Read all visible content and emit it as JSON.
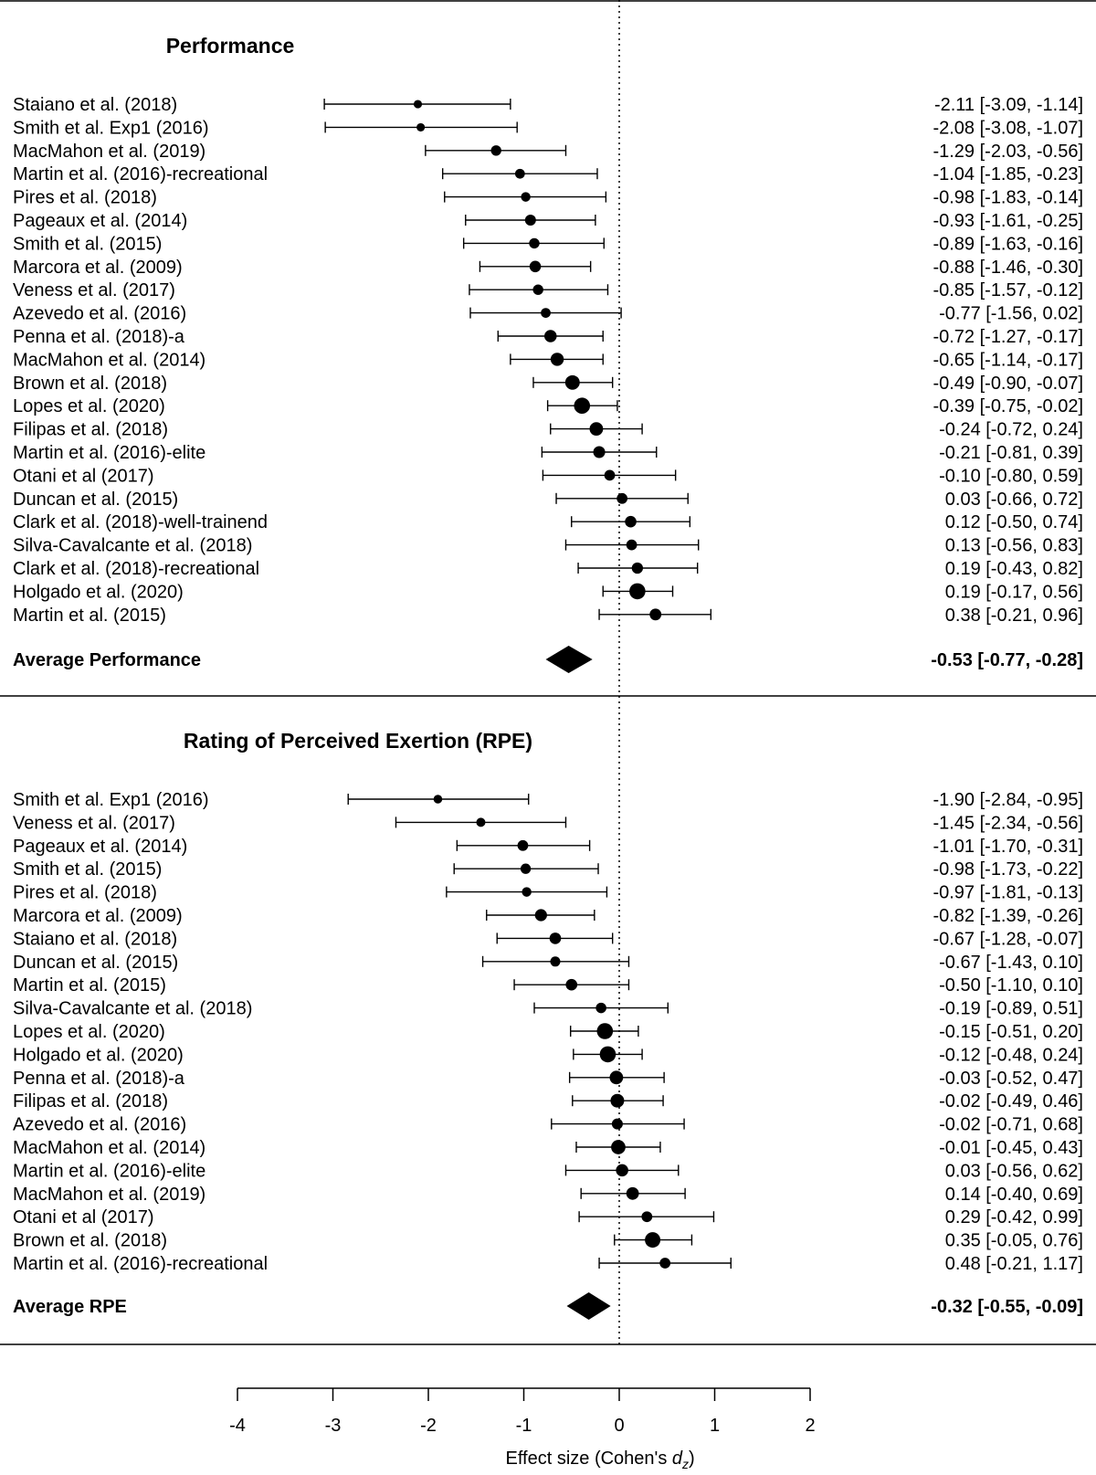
{
  "chart_data": {
    "type": "forest",
    "xlabel": "Effect size (Cohen's d",
    "xlabel_subscript": "z",
    "xlabel_close": ")",
    "xlim": [
      -4,
      2
    ],
    "xticks": [
      -4,
      -3,
      -2,
      -1,
      0,
      1,
      2
    ],
    "xtick_labels": [
      "-4",
      "-3",
      "-2",
      "-1",
      "0",
      "1",
      "2"
    ],
    "reference_line": 0,
    "panels": [
      {
        "title": "Performance",
        "studies": [
          {
            "label": "Staiano et al. (2018)",
            "est": -2.11,
            "lo": -3.09,
            "hi": -1.14,
            "ci_text": "-2.11 [-3.09, -1.14]",
            "weight": 0.1
          },
          {
            "label": "Smith et al. Exp1 (2016)",
            "est": -2.08,
            "lo": -3.08,
            "hi": -1.07,
            "ci_text": "-2.08 [-3.08, -1.07]",
            "weight": 0.1
          },
          {
            "label": "MacMahon et al. (2019)",
            "est": -1.29,
            "lo": -2.03,
            "hi": -0.56,
            "ci_text": "-1.29 [-2.03, -0.56]",
            "weight": 0.25
          },
          {
            "label": "Martin et al. (2016)-recreational",
            "est": -1.04,
            "lo": -1.85,
            "hi": -0.23,
            "ci_text": "-1.04 [-1.85, -0.23]",
            "weight": 0.2
          },
          {
            "label": "Pires et al. (2018)",
            "est": -0.98,
            "lo": -1.83,
            "hi": -0.14,
            "ci_text": "-0.98 [-1.83, -0.14]",
            "weight": 0.18
          },
          {
            "label": "Pageaux et al. (2014)",
            "est": -0.93,
            "lo": -1.61,
            "hi": -0.25,
            "ci_text": "-0.93 [-1.61, -0.25]",
            "weight": 0.3
          },
          {
            "label": "Smith et al. (2015)",
            "est": -0.89,
            "lo": -1.63,
            "hi": -0.16,
            "ci_text": "-0.89 [-1.63, -0.16]",
            "weight": 0.25
          },
          {
            "label": "Marcora et al. (2009)",
            "est": -0.88,
            "lo": -1.46,
            "hi": -0.3,
            "ci_text": "-0.88 [-1.46, -0.30]",
            "weight": 0.35
          },
          {
            "label": "Veness et al. (2017)",
            "est": -0.85,
            "lo": -1.57,
            "hi": -0.12,
            "ci_text": "-0.85 [-1.57, -0.12]",
            "weight": 0.25
          },
          {
            "label": "Azevedo et al. (2016)",
            "est": -0.77,
            "lo": -1.56,
            "hi": 0.02,
            "ci_text": "-0.77 [-1.56,  0.02]",
            "weight": 0.2
          },
          {
            "label": "Penna et al. (2018)-a",
            "est": -0.72,
            "lo": -1.27,
            "hi": -0.17,
            "ci_text": "-0.72 [-1.27, -0.17]",
            "weight": 0.45
          },
          {
            "label": "MacMahon et al. (2014)",
            "est": -0.65,
            "lo": -1.14,
            "hi": -0.17,
            "ci_text": "-0.65 [-1.14, -0.17]",
            "weight": 0.55
          },
          {
            "label": "Brown et al. (2018)",
            "est": -0.49,
            "lo": -0.9,
            "hi": -0.07,
            "ci_text": "-0.49 [-0.90, -0.07]",
            "weight": 0.75
          },
          {
            "label": "Lopes et al. (2020)",
            "est": -0.39,
            "lo": -0.75,
            "hi": -0.02,
            "ci_text": "-0.39 [-0.75, -0.02]",
            "weight": 1.0
          },
          {
            "label": "Filipas et al. (2018)",
            "est": -0.24,
            "lo": -0.72,
            "hi": 0.24,
            "ci_text": "-0.24 [-0.72,  0.24]",
            "weight": 0.6
          },
          {
            "label": "Martin et al. (2016)-elite",
            "est": -0.21,
            "lo": -0.81,
            "hi": 0.39,
            "ci_text": "-0.21 [-0.81,  0.39]",
            "weight": 0.4
          },
          {
            "label": "Otani et al (2017)",
            "est": -0.1,
            "lo": -0.8,
            "hi": 0.59,
            "ci_text": "-0.10 [-0.80,  0.59]",
            "weight": 0.28
          },
          {
            "label": "Duncan et al. (2015)",
            "est": 0.03,
            "lo": -0.66,
            "hi": 0.72,
            "ci_text": "0.03 [-0.66,  0.72]",
            "weight": 0.28
          },
          {
            "label": "Clark et al. (2018)-well-trainend",
            "est": 0.12,
            "lo": -0.5,
            "hi": 0.74,
            "ci_text": "0.12 [-0.50,  0.74]",
            "weight": 0.35
          },
          {
            "label": "Silva-Cavalcante et al. (2018)",
            "est": 0.13,
            "lo": -0.56,
            "hi": 0.83,
            "ci_text": "0.13 [-0.56,  0.83]",
            "weight": 0.28
          },
          {
            "label": "Clark et al. (2018)-recreational",
            "est": 0.19,
            "lo": -0.43,
            "hi": 0.82,
            "ci_text": "0.19 [-0.43,  0.82]",
            "weight": 0.33
          },
          {
            "label": "Holgado et al. (2020)",
            "est": 0.19,
            "lo": -0.17,
            "hi": 0.56,
            "ci_text": "0.19 [-0.17,  0.56]",
            "weight": 1.0
          },
          {
            "label": "Martin et al. (2015)",
            "est": 0.38,
            "lo": -0.21,
            "hi": 0.96,
            "ci_text": "0.38 [-0.21,  0.96]",
            "weight": 0.38
          }
        ],
        "summary": {
          "label": "Average Performance",
          "est": -0.53,
          "lo": -0.77,
          "hi": -0.28,
          "ci_text": "-0.53 [-0.77, -0.28]"
        }
      },
      {
        "title": "Rating of Perceived Exertion (RPE)",
        "studies": [
          {
            "label": "Smith et al. Exp1 (2016)",
            "est": -1.9,
            "lo": -2.84,
            "hi": -0.95,
            "ci_text": "-1.90 [-2.84, -0.95]",
            "weight": 0.12
          },
          {
            "label": "Veness et al. (2017)",
            "est": -1.45,
            "lo": -2.34,
            "hi": -0.56,
            "ci_text": "-1.45 [-2.34, -0.56]",
            "weight": 0.15
          },
          {
            "label": "Pageaux et al. (2014)",
            "est": -1.01,
            "lo": -1.7,
            "hi": -0.31,
            "ci_text": "-1.01 [-1.70, -0.31]",
            "weight": 0.28
          },
          {
            "label": "Smith et al. (2015)",
            "est": -0.98,
            "lo": -1.73,
            "hi": -0.22,
            "ci_text": "-0.98 [-1.73, -0.22]",
            "weight": 0.24
          },
          {
            "label": "Pires et al. (2018)",
            "est": -0.97,
            "lo": -1.81,
            "hi": -0.13,
            "ci_text": "-0.97 [-1.81, -0.13]",
            "weight": 0.18
          },
          {
            "label": "Marcora et al. (2009)",
            "est": -0.82,
            "lo": -1.39,
            "hi": -0.26,
            "ci_text": "-0.82 [-1.39, -0.26]",
            "weight": 0.42
          },
          {
            "label": "Staiano et al. (2018)",
            "est": -0.67,
            "lo": -1.28,
            "hi": -0.07,
            "ci_text": "-0.67 [-1.28, -0.07]",
            "weight": 0.36
          },
          {
            "label": "Duncan et al. (2015)",
            "est": -0.67,
            "lo": -1.43,
            "hi": 0.1,
            "ci_text": "-0.67 [-1.43,  0.10]",
            "weight": 0.22
          },
          {
            "label": "Martin et al. (2015)",
            "est": -0.5,
            "lo": -1.1,
            "hi": 0.1,
            "ci_text": "-0.50 [-1.10,  0.10]",
            "weight": 0.36
          },
          {
            "label": "Silva-Cavalcante et al. (2018)",
            "est": -0.19,
            "lo": -0.89,
            "hi": 0.51,
            "ci_text": "-0.19 [-0.89,  0.51]",
            "weight": 0.26
          },
          {
            "label": "Lopes et al. (2020)",
            "est": -0.15,
            "lo": -0.51,
            "hi": 0.2,
            "ci_text": "-0.15 [-0.51,  0.20]",
            "weight": 1.0
          },
          {
            "label": "Holgado et al. (2020)",
            "est": -0.12,
            "lo": -0.48,
            "hi": 0.24,
            "ci_text": "-0.12 [-0.48,  0.24]",
            "weight": 1.0
          },
          {
            "label": "Penna et al. (2018)-a",
            "est": -0.03,
            "lo": -0.52,
            "hi": 0.47,
            "ci_text": "-0.03 [-0.52,  0.47]",
            "weight": 0.6
          },
          {
            "label": "Filipas et al. (2018)",
            "est": -0.02,
            "lo": -0.49,
            "hi": 0.46,
            "ci_text": "-0.02 [-0.49,  0.46]",
            "weight": 0.62
          },
          {
            "label": "Azevedo et al. (2016)",
            "est": -0.02,
            "lo": -0.71,
            "hi": 0.68,
            "ci_text": "-0.02 [-0.71,  0.68]",
            "weight": 0.3
          },
          {
            "label": "MacMahon et al. (2014)",
            "est": -0.01,
            "lo": -0.45,
            "hi": 0.43,
            "ci_text": "-0.01 [-0.45,  0.43]",
            "weight": 0.72
          },
          {
            "label": "Martin et al. (2016)-elite",
            "est": 0.03,
            "lo": -0.56,
            "hi": 0.62,
            "ci_text": "0.03 [-0.56,  0.62]",
            "weight": 0.45
          },
          {
            "label": "MacMahon et al. (2019)",
            "est": 0.14,
            "lo": -0.4,
            "hi": 0.69,
            "ci_text": "0.14 [-0.40,  0.69]",
            "weight": 0.48
          },
          {
            "label": "Otani et al (2017)",
            "est": 0.29,
            "lo": -0.42,
            "hi": 0.99,
            "ci_text": "0.29 [-0.42,  0.99]",
            "weight": 0.28
          },
          {
            "label": "Brown et al. (2018)",
            "est": 0.35,
            "lo": -0.05,
            "hi": 0.76,
            "ci_text": "0.35 [-0.05,  0.76]",
            "weight": 0.9
          },
          {
            "label": "Martin et al. (2016)-recreational",
            "est": 0.48,
            "lo": -0.21,
            "hi": 1.17,
            "ci_text": "0.48 [-0.21,  1.17]",
            "weight": 0.28
          }
        ],
        "summary": {
          "label": "Average RPE",
          "est": -0.32,
          "lo": -0.55,
          "hi": -0.09,
          "ci_text": "-0.32 [-0.55, -0.09]"
        }
      }
    ]
  }
}
